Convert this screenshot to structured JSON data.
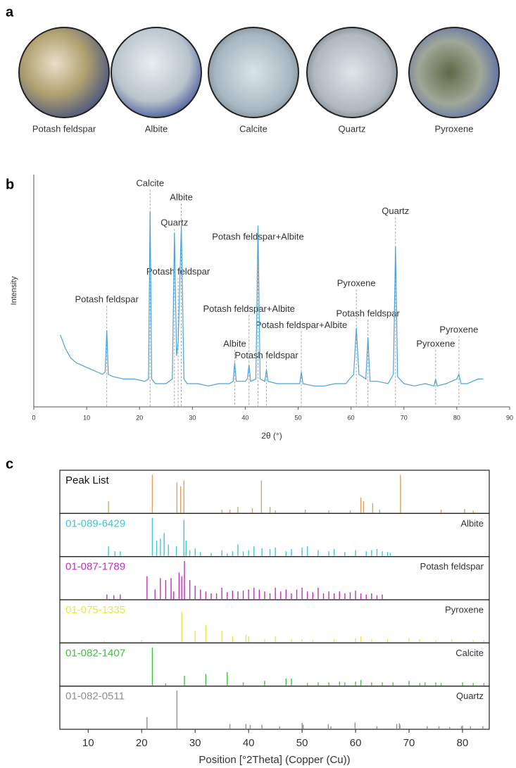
{
  "panel_a": {
    "panel_label": "a",
    "images": [
      {
        "label": "Potash feldspar"
      },
      {
        "label": "Albite"
      },
      {
        "label": "Calcite"
      },
      {
        "label": "Quartz"
      },
      {
        "label": "Pyroxene"
      }
    ]
  },
  "chart_data": [
    {
      "type": "line",
      "panel_label": "b",
      "x_label": "2θ (°)",
      "y_label": "Intensity",
      "xlim": [
        0,
        90
      ],
      "xticks": [
        0,
        10,
        20,
        30,
        40,
        50,
        60,
        70,
        80,
        90
      ],
      "ylim": [
        0,
        100
      ],
      "x": [
        5,
        6,
        7,
        8,
        9,
        10,
        11,
        12,
        13,
        13.5,
        13.8,
        14.1,
        15,
        17,
        19,
        21,
        21.7,
        22,
        22.3,
        23,
        25,
        26.2,
        26.6,
        27,
        27.3,
        27.9,
        28.4,
        29,
        31,
        33,
        35,
        37,
        37.7,
        38,
        38.3,
        40,
        40.4,
        40.7,
        41,
        42,
        42.4,
        42.8,
        43.7,
        44,
        44.3,
        46,
        48,
        50.3,
        50.6,
        50.9,
        53,
        55,
        57,
        59,
        60.5,
        61,
        61.5,
        62.8,
        63.2,
        63.6,
        65,
        67,
        68,
        68.4,
        68.8,
        70,
        72,
        74,
        75.7,
        76,
        76.3,
        78,
        80,
        80.4,
        80.8,
        82,
        84,
        85
      ],
      "series": [
        {
          "color": "#4aa3d8",
          "values": [
            31,
            25,
            21,
            19,
            18,
            17,
            16,
            15,
            14,
            15,
            33,
            14,
            13,
            12,
            12,
            11,
            12,
            84,
            12,
            10,
            10,
            12,
            75,
            22,
            28,
            78,
            12,
            10,
            10,
            9,
            10,
            10,
            11,
            19,
            11,
            11,
            12,
            18,
            11,
            12,
            78,
            12,
            11,
            16,
            11,
            10,
            10,
            10,
            15,
            10,
            9,
            9,
            10,
            10,
            14,
            34,
            14,
            12,
            30,
            11,
            11,
            10,
            14,
            69,
            13,
            10,
            9,
            10,
            9,
            12,
            9,
            10,
            12,
            14,
            10,
            10,
            12,
            12
          ]
        }
      ],
      "annotations": [
        {
          "label": "Potash feldspar",
          "x": 13.8,
          "y": 46
        },
        {
          "label": "Calcite",
          "x": 22,
          "y": 96
        },
        {
          "label": "Quartz",
          "x": 26.6,
          "y": 79
        },
        {
          "label": "Albite",
          "x": 27.9,
          "y": 90
        },
        {
          "label": "Potash feldspar",
          "x": 27.3,
          "y": 58
        },
        {
          "label": "Potash feldspar+Albite",
          "x": 42.4,
          "y": 73
        },
        {
          "label": "Potash feldspar+Albite",
          "x": 40.7,
          "y": 42
        },
        {
          "label": "Albite",
          "x": 38,
          "y": 27
        },
        {
          "label": "Potash feldspar",
          "x": 44,
          "y": 22
        },
        {
          "label": "Potash feldspar+Albite",
          "x": 50.6,
          "y": 35
        },
        {
          "label": "Pyroxene",
          "x": 61,
          "y": 53
        },
        {
          "label": "Potash feldspar",
          "x": 63.2,
          "y": 40
        },
        {
          "label": "Quartz",
          "x": 68.4,
          "y": 84
        },
        {
          "label": "Pyroxene",
          "x": 76,
          "y": 27
        },
        {
          "label": "Pyroxene",
          "x": 80.4,
          "y": 33
        }
      ]
    },
    {
      "type": "stick",
      "panel_label": "c",
      "x_label": "Position [°2Theta] (Copper (Cu))",
      "xlim": [
        4.7,
        85
      ],
      "xticks": [
        10,
        20,
        30,
        40,
        50,
        60,
        70,
        80
      ],
      "ylim": [
        0,
        100
      ],
      "rows": [
        {
          "code": "Peak List",
          "color": "#e0a060",
          "positions": [
            13.8,
            22,
            26.6,
            27.3,
            27.9,
            35,
            36.5,
            38,
            40.7,
            42.4,
            44,
            45,
            50.6,
            55,
            59,
            61,
            61.5,
            63.2,
            64.5,
            68.4,
            76,
            80.4,
            82
          ],
          "intensities": [
            30,
            100,
            80,
            70,
            85,
            8,
            8,
            15,
            12,
            85,
            15,
            6,
            8,
            6,
            6,
            40,
            30,
            25,
            8,
            100,
            8,
            10,
            5
          ]
        },
        {
          "code": "01-089-6429",
          "name": "Albite",
          "color": "#3cc8d8",
          "positions": [
            13.8,
            15,
            16,
            22,
            22.8,
            23.5,
            24.2,
            25,
            26.5,
            27.9,
            28.3,
            29,
            30,
            31,
            33,
            35,
            36,
            37,
            38,
            39,
            40,
            41,
            42.5,
            44,
            45,
            47,
            48,
            50,
            51,
            53,
            55,
            56,
            58,
            60,
            62,
            63,
            64,
            65,
            66,
            66.5
          ],
          "intensities": [
            25,
            12,
            12,
            100,
            40,
            45,
            60,
            30,
            25,
            95,
            40,
            15,
            20,
            10,
            8,
            15,
            6,
            12,
            30,
            12,
            15,
            25,
            20,
            18,
            22,
            12,
            18,
            22,
            25,
            15,
            12,
            18,
            10,
            15,
            12,
            15,
            18,
            12,
            10,
            8
          ]
        },
        {
          "code": "01-087-1789",
          "name": "Potash feldspar",
          "color": "#c030c0",
          "positions": [
            13.5,
            14.8,
            16,
            21,
            22.5,
            23.5,
            24.5,
            25.5,
            26,
            27,
            27.5,
            28,
            29,
            30,
            31,
            32,
            33,
            34,
            35,
            36,
            37,
            38,
            39,
            40,
            41,
            42,
            43,
            44,
            45,
            46,
            47,
            48,
            49,
            50,
            51,
            52,
            53,
            54,
            55,
            56,
            57,
            58,
            59,
            60,
            61,
            62,
            63,
            64,
            65
          ],
          "intensities": [
            12,
            10,
            12,
            60,
            25,
            55,
            50,
            55,
            20,
            70,
            60,
            100,
            50,
            35,
            25,
            20,
            15,
            15,
            30,
            18,
            22,
            20,
            22,
            25,
            30,
            25,
            20,
            15,
            30,
            20,
            25,
            15,
            25,
            30,
            20,
            18,
            30,
            15,
            20,
            15,
            20,
            15,
            18,
            22,
            15,
            12,
            15,
            10,
            12
          ]
        },
        {
          "code": "01-075-1335",
          "name": "Pyroxene",
          "color": "#e8e840",
          "positions": [
            13,
            20,
            27.5,
            30,
            32,
            35,
            37,
            39.5,
            40,
            43,
            45,
            48,
            50,
            52,
            56,
            60,
            61,
            63,
            66,
            70,
            72,
            75,
            78,
            82,
            84
          ],
          "intensities": [
            3,
            6,
            80,
            30,
            45,
            30,
            15,
            20,
            15,
            8,
            15,
            8,
            8,
            6,
            8,
            10,
            15,
            8,
            8,
            10,
            8,
            6,
            8,
            6,
            6
          ]
        },
        {
          "code": "01-082-1407",
          "name": "Calcite",
          "color": "#40c040",
          "positions": [
            22,
            24.5,
            28,
            32,
            36,
            39,
            43,
            47,
            48,
            51,
            53,
            55,
            57,
            58,
            60,
            61,
            63,
            65,
            67,
            70,
            72,
            73,
            75,
            76,
            80,
            82,
            84
          ],
          "intensities": [
            100,
            5,
            25,
            30,
            35,
            8,
            12,
            18,
            18,
            6,
            8,
            8,
            10,
            8,
            10,
            14,
            8,
            8,
            8,
            12,
            6,
            8,
            8,
            6,
            8,
            6,
            6
          ]
        },
        {
          "code": "01-082-0511",
          "name": "Quartz",
          "color": "#909090",
          "positions": [
            21,
            26.6,
            36.5,
            39.5,
            40.3,
            42.5,
            45.8,
            50,
            50.2,
            54.9,
            55.4,
            59.9,
            64,
            67.7,
            68.2,
            68.3,
            73.4,
            75.6,
            77.6,
            79.8,
            80,
            81.5,
            83.8
          ],
          "intensities": [
            30,
            100,
            12,
            12,
            10,
            10,
            6,
            15,
            10,
            12,
            6,
            16,
            6,
            12,
            14,
            10,
            6,
            6,
            4,
            6,
            8,
            6,
            6
          ]
        }
      ]
    }
  ]
}
